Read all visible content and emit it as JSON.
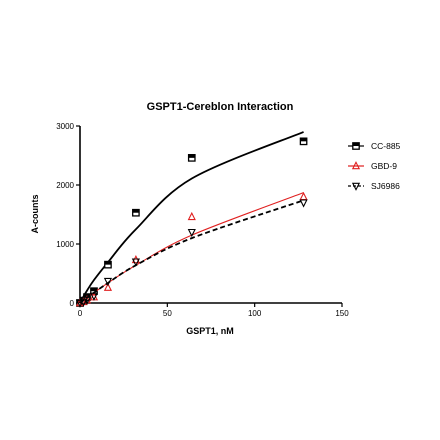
{
  "chart_data": {
    "type": "scatter",
    "title": "GSPT1-Cereblon Interaction",
    "xlabel": "GSPT1, nM",
    "ylabel": "A-counts",
    "xlim": [
      0,
      150
    ],
    "ylim": [
      0,
      3000
    ],
    "xticks": [
      0,
      50,
      100,
      150
    ],
    "yticks": [
      0,
      1000,
      2000,
      3000
    ],
    "grid": false,
    "legend_position": "right",
    "series": [
      {
        "name": "CC-885",
        "color": "#000000",
        "marker": "square",
        "line_style": "solid",
        "x": [
          0,
          2,
          4,
          8,
          16,
          32,
          64,
          128
        ],
        "y": [
          0,
          40,
          100,
          200,
          650,
          1530,
          2460,
          2740
        ],
        "fit_y": [
          0,
          110,
          210,
          390,
          690,
          1250,
          2110,
          2900
        ]
      },
      {
        "name": "GBD-9",
        "color": "#e02020",
        "marker": "triangle-up",
        "line_style": "solid",
        "x": [
          0,
          2,
          4,
          8,
          16,
          32,
          64,
          128
        ],
        "y": [
          0,
          20,
          50,
          100,
          260,
          730,
          1460,
          1800
        ],
        "fit_y": [
          0,
          45,
          90,
          175,
          340,
          640,
          1150,
          1870
        ]
      },
      {
        "name": "SJ6986",
        "color": "#000000",
        "marker": "triangle-down",
        "line_style": "dashed",
        "x": [
          0,
          2,
          4,
          8,
          16,
          32,
          64,
          128
        ],
        "y": [
          0,
          20,
          50,
          120,
          370,
          700,
          1200,
          1700
        ],
        "fit_y": [
          0,
          45,
          90,
          175,
          340,
          640,
          1100,
          1740
        ]
      }
    ]
  }
}
